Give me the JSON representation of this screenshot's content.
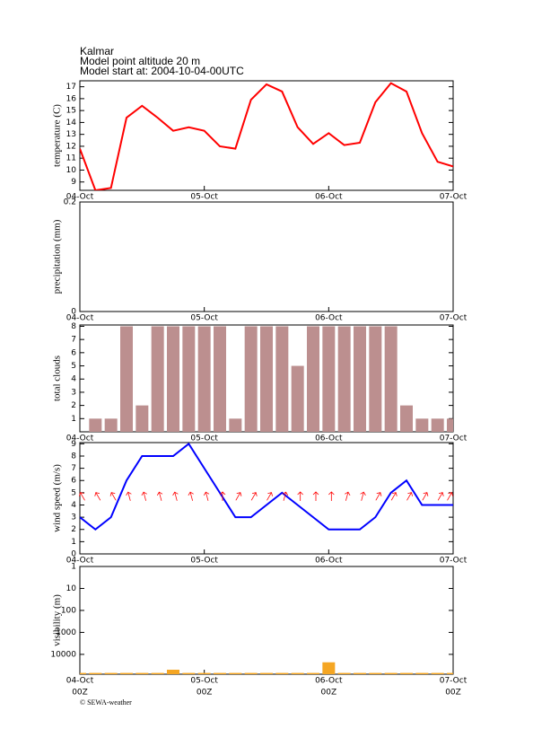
{
  "header": {
    "location": "Kalmar",
    "altitude": "Model point altitude  20 m",
    "model_start": "Model start at: 2004-10-04-00UTC"
  },
  "footer": "© SEWA-weather",
  "chart_data": [
    {
      "type": "line",
      "ylabel": "temperature (C)",
      "color": "#ff0000",
      "x": [
        0,
        3,
        6,
        9,
        12,
        15,
        18,
        21,
        24,
        27,
        30,
        33,
        36,
        39,
        42,
        45,
        48,
        51,
        54,
        57,
        60,
        63,
        66,
        69,
        72
      ],
      "values": [
        11.8,
        8.3,
        8.5,
        14.4,
        15.4,
        14.4,
        13.3,
        13.6,
        13.3,
        12.0,
        11.8,
        15.9,
        17.2,
        16.6,
        13.6,
        12.2,
        13.1,
        12.1,
        12.3,
        15.7,
        17.3,
        16.6,
        13.1,
        10.7,
        10.3
      ],
      "xlim": [
        0,
        72
      ],
      "xticks": [
        {
          "value": 0,
          "label": "04-Oct"
        },
        {
          "value": 24,
          "label": "05-Oct"
        },
        {
          "value": 48,
          "label": "06-Oct"
        },
        {
          "value": 72,
          "label": "07-Oct"
        }
      ],
      "ylim": [
        8.3,
        17.5
      ],
      "yticks": [
        9,
        10,
        11,
        12,
        13,
        14,
        15,
        16,
        17
      ]
    },
    {
      "type": "bar",
      "ylabel": "precipitation (mm)",
      "color": "#4a7fc1",
      "xlim": [
        0,
        72
      ],
      "xticks": [
        {
          "value": 0,
          "label": "04-Oct"
        },
        {
          "value": 24,
          "label": "05-Oct"
        },
        {
          "value": 48,
          "label": "06-Oct"
        },
        {
          "value": 72,
          "label": "07-Oct"
        }
      ],
      "ylim": [
        0,
        0.2
      ],
      "yticks": [
        0,
        0.2
      ]
    },
    {
      "type": "bar",
      "ylabel": "total clouds",
      "color": "#bc8f8f",
      "x": [
        3,
        6,
        9,
        12,
        15,
        18,
        21,
        24,
        27,
        30,
        33,
        36,
        39,
        42,
        45,
        48,
        51,
        54,
        57,
        60,
        63,
        66,
        69,
        72
      ],
      "values": [
        1,
        1,
        8,
        2,
        8,
        8,
        8,
        8,
        8,
        1,
        8,
        8,
        8,
        5,
        8,
        8,
        8,
        8,
        8,
        8,
        2,
        1,
        1,
        1
      ],
      "xlim": [
        0,
        72
      ],
      "xticks": [
        {
          "value": 0,
          "label": "04-Oct"
        },
        {
          "value": 24,
          "label": "05-Oct"
        },
        {
          "value": 48,
          "label": "06-Oct"
        },
        {
          "value": 72,
          "label": "07-Oct"
        }
      ],
      "ylim": [
        0,
        8.1
      ],
      "yticks": [
        1,
        2,
        3,
        4,
        5,
        6,
        7,
        8
      ]
    },
    {
      "type": "line",
      "ylabel": "wind speed (m/s)",
      "color": "#0000ff",
      "arrow_color": "#ff0000",
      "x": [
        0,
        3,
        6,
        9,
        12,
        15,
        18,
        21,
        24,
        27,
        30,
        33,
        36,
        39,
        42,
        45,
        48,
        51,
        54,
        57,
        60,
        63,
        66,
        69,
        72
      ],
      "values": [
        3,
        2,
        3,
        6,
        8,
        8,
        8,
        9,
        7,
        5,
        3,
        3,
        4,
        5,
        4,
        3,
        2,
        2,
        2,
        3,
        5,
        6,
        4,
        4,
        4
      ],
      "wind_dir": [
        330,
        330,
        330,
        345,
        345,
        345,
        345,
        345,
        345,
        0,
        30,
        30,
        30,
        15,
        0,
        0,
        0,
        15,
        15,
        30,
        30,
        30,
        30,
        30,
        30
      ],
      "xlim": [
        0,
        72
      ],
      "xticks": [
        {
          "value": 0,
          "label": "04-Oct"
        },
        {
          "value": 24,
          "label": "05-Oct"
        },
        {
          "value": 48,
          "label": "06-Oct"
        },
        {
          "value": 72,
          "label": "07-Oct"
        }
      ],
      "ylim": [
        0,
        9.1
      ],
      "yticks": [
        0,
        1,
        2,
        3,
        4,
        5,
        6,
        7,
        8,
        9
      ]
    },
    {
      "type": "bar",
      "ylabel": "visibility (m)",
      "color": "#f5a623",
      "log_scale": true,
      "reversed": true,
      "x": [
        0,
        3,
        6,
        9,
        12,
        15,
        18,
        21,
        24,
        27,
        30,
        33,
        36,
        39,
        42,
        45,
        48,
        51,
        54,
        57,
        60,
        63,
        66,
        69,
        72
      ],
      "values": [
        70000,
        70000,
        70000,
        70000,
        70000,
        70000,
        50000,
        70000,
        70000,
        70000,
        70000,
        70000,
        70000,
        70000,
        70000,
        70000,
        23000,
        70000,
        70000,
        70000,
        70000,
        70000,
        70000,
        70000,
        70000
      ],
      "xlim": [
        0,
        72
      ],
      "xticks": [
        {
          "value": 0,
          "label": "04-Oct"
        },
        {
          "value": 24,
          "label": "05-Oct"
        },
        {
          "value": 48,
          "label": "06-Oct"
        },
        {
          "value": 72,
          "label": "07-Oct"
        }
      ],
      "xtick_sublabels": [
        "00Z",
        "00Z",
        "00Z",
        "00Z"
      ],
      "ylim": [
        1,
        80000
      ],
      "yticks": [
        1,
        10,
        100,
        1000,
        10000
      ]
    }
  ]
}
